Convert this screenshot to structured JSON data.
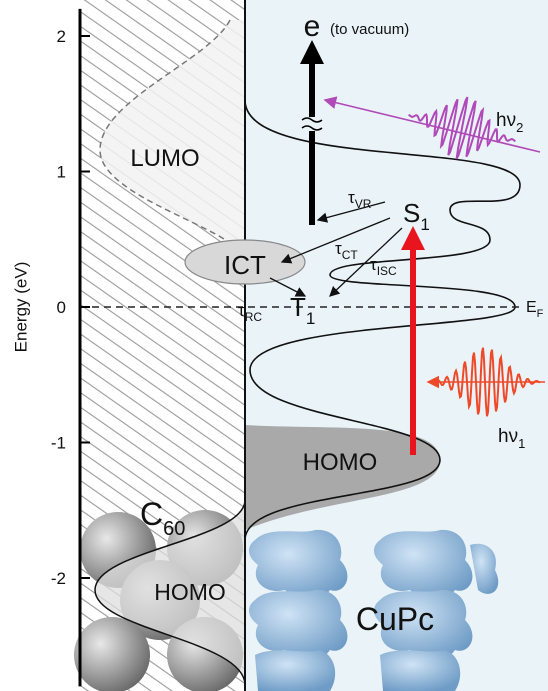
{
  "axis": {
    "label": "Energy (eV)",
    "ylim": [
      -2.8,
      2.2
    ],
    "yticks": [
      -2,
      -1,
      0,
      1,
      2
    ]
  },
  "labels": {
    "electron": "e",
    "vacuum": "(to vacuum)",
    "hv2": {
      "text": "hν",
      "sub": "2"
    },
    "lumo": "LUMO",
    "tau_vr": {
      "text": "τ",
      "sub": "VR"
    },
    "s1": {
      "text": "S",
      "sub": "1"
    },
    "ict": "ICT",
    "tau_ct": {
      "text": "τ",
      "sub": "CT"
    },
    "tau_isc": {
      "text": "τ",
      "sub": "ISC"
    },
    "tau_rc": {
      "text": "τ",
      "sub": "RC"
    },
    "t1": {
      "text": "T",
      "sub": "1"
    },
    "ef": {
      "text": "E",
      "sub": "F"
    },
    "hv1": {
      "text": "hν",
      "sub": "1"
    },
    "homo_cupc": "HOMO",
    "c60": {
      "text": "C",
      "sub": "60"
    },
    "homo_c60": "HOMO",
    "cupc": "CuPc"
  }
}
